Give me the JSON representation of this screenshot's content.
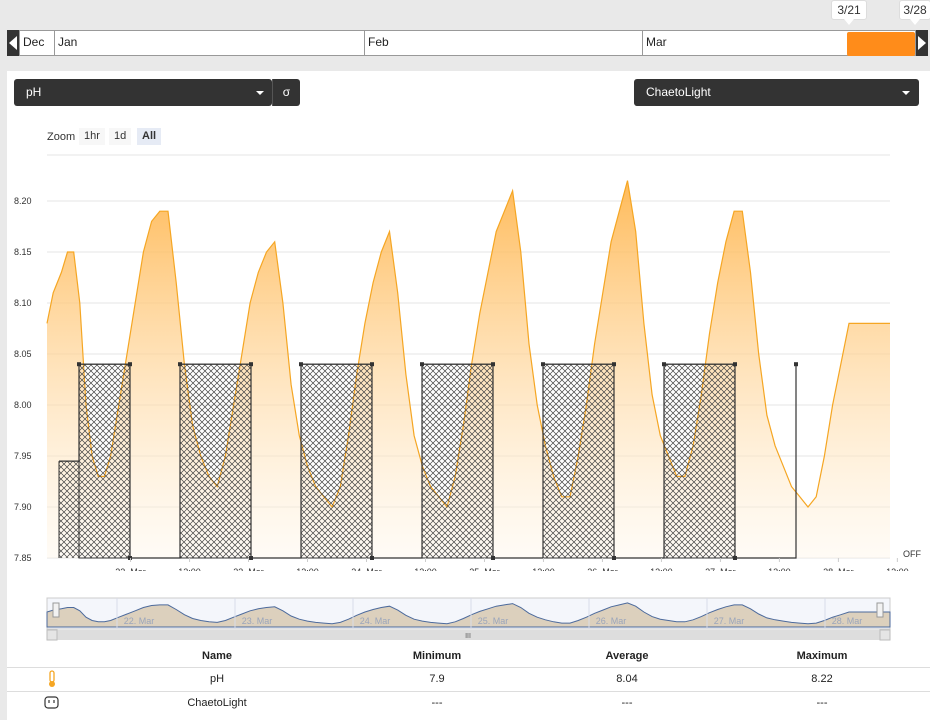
{
  "timeline": {
    "months": [
      "Dec",
      "Jan",
      "Feb",
      "Mar"
    ],
    "range_start": "3/21",
    "range_end": "3/28"
  },
  "controls": {
    "left_select": "pH",
    "sigma_label": "σ",
    "right_select": "ChaetoLight",
    "zoom_label": "Zoom",
    "zoom_options": [
      "1hr",
      "1d",
      "All"
    ],
    "zoom_active": "All"
  },
  "colors": {
    "ph_line": "#f5a623",
    "ph_fill": "#ffc25a",
    "light_line": "#333333",
    "range": "#ff8c1a",
    "navigator": "#c8b08a"
  },
  "chart_data": {
    "type": "line",
    "xlabel": "",
    "ylabel": "",
    "ylim": [
      7.85,
      8.2
    ],
    "yticks": [
      "7.85",
      "7.90",
      "7.95",
      "8.00",
      "8.05",
      "8.10",
      "8.15",
      "8.20"
    ],
    "xticks": [
      "22. Mar",
      "12:00",
      "23. Mar",
      "12:00",
      "24. Mar",
      "12:00",
      "25. Mar",
      "12:00",
      "26. Mar",
      "12:00",
      "27. Mar",
      "12:00",
      "28. Mar",
      "12:00"
    ],
    "x_hours_note": "hours from 21. Mar 00:00",
    "right_axis_label": "OFF",
    "series": [
      {
        "name": "pH",
        "x_hours": [
          8.5,
          10,
          12,
          13.5,
          15,
          16.5,
          18,
          19.5,
          21,
          22.5,
          24,
          26,
          28,
          30,
          32,
          34,
          36,
          38,
          40,
          42,
          44,
          46,
          48,
          50,
          52,
          54,
          56,
          58,
          60,
          62,
          64,
          66,
          68,
          70,
          72,
          74,
          76,
          78,
          80,
          82,
          84,
          86,
          88,
          90,
          92,
          94,
          96,
          98,
          100,
          102,
          104,
          106,
          108,
          110,
          112,
          114,
          116,
          118,
          120,
          122,
          124,
          126,
          128,
          130,
          132,
          134,
          136,
          138,
          140,
          142,
          144,
          146,
          148,
          150,
          152,
          154,
          156,
          158,
          160,
          162,
          164,
          166,
          168,
          170,
          172,
          174,
          176,
          178,
          180,
          182,
          184,
          186,
          188,
          190,
          192,
          194,
          196,
          198,
          200,
          202,
          204,
          206,
          208,
          210,
          212,
          214
        ],
        "values": [
          8.08,
          8.11,
          8.13,
          8.15,
          8.15,
          8.1,
          8.0,
          7.95,
          7.93,
          7.93,
          7.95,
          8.0,
          8.05,
          8.1,
          8.15,
          8.18,
          8.19,
          8.19,
          8.12,
          8.04,
          7.98,
          7.95,
          7.93,
          7.92,
          7.95,
          8.0,
          8.05,
          8.1,
          8.13,
          8.15,
          8.16,
          8.1,
          8.02,
          7.97,
          7.94,
          7.92,
          7.91,
          7.9,
          7.92,
          7.97,
          8.03,
          8.08,
          8.12,
          8.15,
          8.17,
          8.11,
          8.03,
          7.97,
          7.94,
          7.92,
          7.91,
          7.9,
          7.93,
          7.98,
          8.04,
          8.09,
          8.13,
          8.17,
          8.19,
          8.21,
          8.15,
          8.06,
          8.0,
          7.96,
          7.93,
          7.91,
          7.91,
          7.95,
          8.0,
          8.06,
          8.11,
          8.16,
          8.19,
          8.22,
          8.17,
          8.08,
          8.01,
          7.97,
          7.95,
          7.93,
          7.93,
          7.96,
          8.01,
          8.07,
          8.12,
          8.16,
          8.19,
          8.19,
          8.13,
          8.05,
          7.99,
          7.96,
          7.94,
          7.92,
          7.91,
          7.9,
          7.91,
          7.95,
          8.0,
          8.04,
          8.08,
          8.08,
          8.08,
          8.08,
          8.08,
          8.08
        ]
      },
      {
        "name": "ChaetoLight",
        "step_on_intervals_hours": [
          [
            8,
            12.5
          ],
          [
            12.5,
            36
          ],
          [
            60,
            84
          ],
          [
            108,
            132
          ],
          [
            156,
            180
          ],
          [
            204,
            228
          ],
          [
            252,
            276
          ],
          [
            300,
            324
          ]
        ],
        "low_value": 7.945,
        "on_value": 8.04,
        "off_value": 7.85
      }
    ]
  },
  "navigator": {
    "labels": [
      "22. Mar",
      "23. Mar",
      "24. Mar",
      "25. Mar",
      "26. Mar",
      "27. Mar",
      "28. Mar"
    ],
    "scroll_glyph": "III"
  },
  "stats": {
    "headers": [
      "Name",
      "Minimum",
      "Average",
      "Maximum"
    ],
    "rows": [
      {
        "icon": "thermometer-icon",
        "name": "pH",
        "min": "7.9",
        "avg": "8.04",
        "max": "8.22"
      },
      {
        "icon": "outlet-icon",
        "name": "ChaetoLight",
        "min": "---",
        "avg": "---",
        "max": "---"
      }
    ]
  }
}
